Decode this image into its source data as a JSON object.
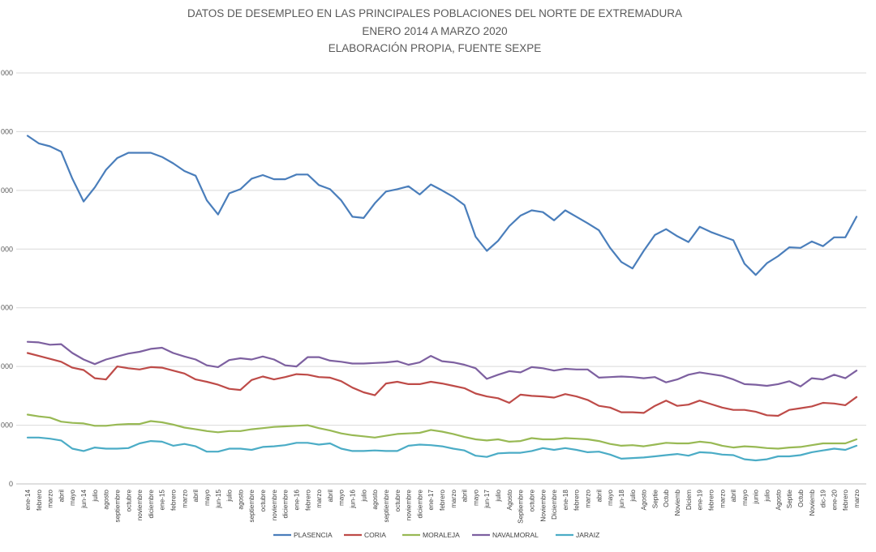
{
  "chart_data": {
    "type": "line",
    "title": [
      "DATOS DE DESEMPLEO EN LAS PRINCIPALES POBLACIONES DEL NORTE DE EXTREMADURA",
      "ENERO 2014 A  MARZO 2020",
      "ELABORACIÓN PROPIA, FUENTE SEXPE"
    ],
    "xlabel": "",
    "ylabel": "",
    "ylim": [
      0,
      7000
    ],
    "yticks": [
      0,
      1000,
      2000,
      3000,
      4000,
      5000,
      6000,
      7000
    ],
    "ytick_labels": [
      "0",
      "000",
      "000",
      "000",
      "000",
      "000",
      "000",
      "000"
    ],
    "grid": true,
    "legend_position": "bottom",
    "categories": [
      "ene-14",
      "febrero",
      "marzo",
      "abril",
      "mayo",
      "jun-14",
      "julio",
      "agosto",
      "septiembre",
      "octubre",
      "noviembre",
      "diciembre",
      "ene-15",
      "febrero",
      "marzo",
      "abril",
      "mayo",
      "jun-15",
      "julio",
      "agosto",
      "septiembre",
      "octubre",
      "noviembre",
      "diciembre",
      "ene-16",
      "febrero",
      "marzo",
      "abril",
      "mayo",
      "jun-16",
      "julio",
      "agosto",
      "septiembre",
      "octubre",
      "noviembre",
      "diciembre",
      "ene-17",
      "febrero",
      "marzo",
      "abril",
      "mayo",
      "jun-17",
      "julio",
      "Agosto",
      "Septiembre",
      "octubre",
      "Noviembre",
      "Diciembre",
      "ene-18",
      "febrero",
      "marzo",
      "abril",
      "mayo",
      "jun-18",
      "julio",
      "Agosto",
      "Septie",
      "Octub",
      "Noviemb",
      "Diciem",
      "ene-19",
      "febrero",
      "marzo",
      "abril",
      "mayo",
      "junio",
      "julio",
      "Agosto",
      "Septie",
      "Octub",
      "Noviemb",
      "dic-19",
      "ene-20",
      "febrero",
      "marzo"
    ],
    "series": [
      {
        "name": "PLASENCIA",
        "color": "#4a7ebb",
        "values": [
          5930,
          5800,
          5750,
          5660,
          5200,
          4810,
          5050,
          5350,
          5550,
          5640,
          5640,
          5640,
          5570,
          5460,
          5330,
          5250,
          4830,
          4590,
          4950,
          5020,
          5200,
          5260,
          5190,
          5190,
          5270,
          5270,
          5090,
          5020,
          4830,
          4550,
          4530,
          4780,
          4980,
          5020,
          5070,
          4930,
          5100,
          5000,
          4890,
          4750,
          4210,
          3970,
          4140,
          4390,
          4570,
          4660,
          4630,
          4490,
          4660,
          4550,
          4440,
          4320,
          4020,
          3780,
          3670,
          3970,
          4240,
          4340,
          4220,
          4120,
          4380,
          4290,
          4220,
          4150,
          3750,
          3560,
          3760,
          3880,
          4030,
          4020,
          4130,
          4050,
          4200,
          4200,
          4550
        ]
      },
      {
        "name": "CORIA",
        "color": "#be4b48",
        "values": [
          2230,
          2180,
          2130,
          2080,
          1980,
          1940,
          1800,
          1780,
          2000,
          1970,
          1950,
          1990,
          1980,
          1930,
          1880,
          1780,
          1740,
          1690,
          1620,
          1600,
          1770,
          1830,
          1780,
          1820,
          1870,
          1860,
          1820,
          1810,
          1750,
          1640,
          1560,
          1510,
          1710,
          1740,
          1700,
          1700,
          1740,
          1710,
          1670,
          1630,
          1540,
          1490,
          1460,
          1380,
          1520,
          1500,
          1490,
          1470,
          1530,
          1490,
          1430,
          1330,
          1300,
          1220,
          1220,
          1210,
          1330,
          1420,
          1330,
          1350,
          1420,
          1360,
          1300,
          1260,
          1260,
          1230,
          1170,
          1160,
          1260,
          1290,
          1320,
          1380,
          1370,
          1340,
          1480
        ]
      },
      {
        "name": "MORALEJA",
        "color": "#98b954",
        "values": [
          1180,
          1150,
          1130,
          1060,
          1040,
          1030,
          990,
          990,
          1010,
          1020,
          1020,
          1070,
          1050,
          1010,
          960,
          930,
          900,
          880,
          900,
          900,
          930,
          950,
          970,
          980,
          990,
          1000,
          950,
          910,
          860,
          830,
          810,
          790,
          820,
          850,
          860,
          870,
          920,
          890,
          850,
          800,
          760,
          740,
          760,
          720,
          730,
          780,
          760,
          760,
          780,
          770,
          760,
          730,
          680,
          650,
          660,
          640,
          670,
          700,
          690,
          690,
          720,
          700,
          650,
          620,
          640,
          630,
          610,
          600,
          620,
          630,
          660,
          690,
          690,
          690,
          760
        ]
      },
      {
        "name": "NAVALMORAL",
        "color": "#7d60a0",
        "values": [
          2420,
          2410,
          2370,
          2380,
          2230,
          2120,
          2040,
          2120,
          2170,
          2220,
          2250,
          2300,
          2320,
          2230,
          2170,
          2120,
          2020,
          1990,
          2110,
          2140,
          2120,
          2170,
          2120,
          2020,
          2000,
          2160,
          2160,
          2100,
          2080,
          2050,
          2050,
          2060,
          2070,
          2090,
          2030,
          2070,
          2180,
          2090,
          2070,
          2030,
          1970,
          1790,
          1860,
          1920,
          1900,
          1990,
          1970,
          1930,
          1960,
          1950,
          1950,
          1810,
          1820,
          1830,
          1820,
          1800,
          1820,
          1730,
          1780,
          1860,
          1900,
          1870,
          1840,
          1780,
          1700,
          1690,
          1670,
          1700,
          1750,
          1660,
          1800,
          1780,
          1860,
          1800,
          1930
        ]
      },
      {
        "name": "JARAIZ",
        "color": "#4bacc6",
        "values": [
          790,
          790,
          770,
          740,
          600,
          560,
          620,
          600,
          600,
          610,
          690,
          730,
          720,
          650,
          680,
          640,
          550,
          550,
          600,
          600,
          580,
          630,
          640,
          660,
          700,
          700,
          670,
          690,
          600,
          560,
          560,
          570,
          560,
          560,
          650,
          670,
          660,
          640,
          600,
          570,
          480,
          460,
          520,
          530,
          530,
          560,
          610,
          580,
          610,
          580,
          540,
          550,
          500,
          430,
          440,
          450,
          470,
          490,
          510,
          480,
          540,
          530,
          500,
          490,
          420,
          400,
          420,
          470,
          470,
          490,
          540,
          570,
          600,
          580,
          650
        ]
      }
    ]
  }
}
